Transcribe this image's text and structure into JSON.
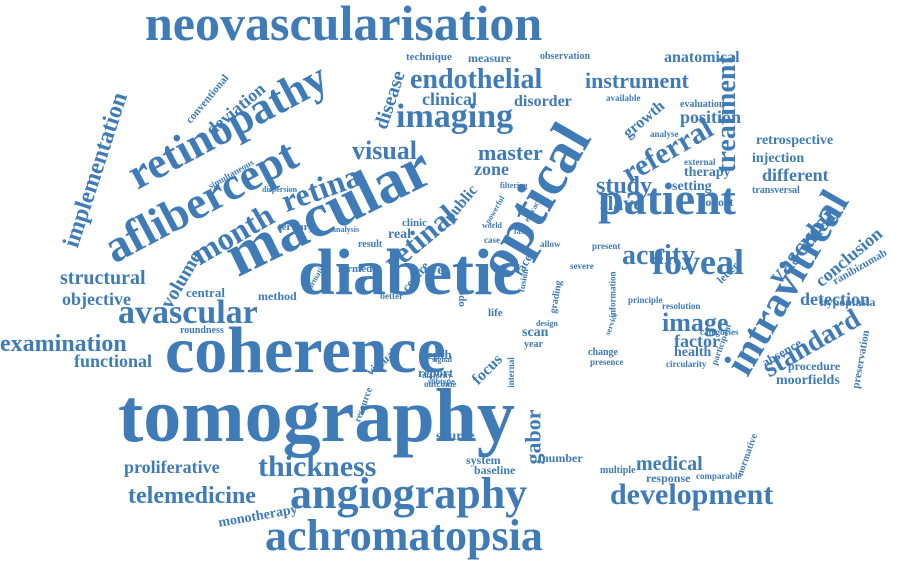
{
  "cloud": {
    "color": "#3f7bb6",
    "background": "#ffffff",
    "words": [
      "tomography",
      "coherence",
      "diabetic",
      "neovascularisation",
      "macular",
      "optical",
      "patient",
      "retinopathy",
      "aflibercept",
      "intravitreal",
      "angiography",
      "achromatopsia",
      "foveal",
      "endothelial",
      "imaging",
      "development",
      "telemedicine",
      "avascular",
      "month",
      "retina",
      "treatment",
      "retinal",
      "visual",
      "clinical",
      "instrument",
      "referral",
      "master",
      "study",
      "acuity",
      "image",
      "standard",
      "vascular",
      "implementation",
      "thickness",
      "proliferative",
      "examination",
      "structural",
      "objective",
      "functional",
      "volume",
      "disease",
      "detection",
      "moorfields",
      "conclusion",
      "medical",
      "gabor",
      "monotherapy",
      "deviation",
      "anatomical",
      "measure",
      "technique",
      "observation",
      "disorder",
      "position",
      "different",
      "setting",
      "cohort",
      "slave",
      "zone",
      "public",
      "growth",
      "evaluation",
      "retrospective",
      "injection",
      "therapy",
      "transversal",
      "ranibizumab",
      "hypoplasia",
      "preservation",
      "procedure",
      "absence",
      "factor",
      "health",
      "focus",
      "source",
      "system",
      "baseline",
      "number",
      "multiple",
      "response",
      "comparable",
      "normative",
      "central",
      "method",
      "tertiary",
      "formed",
      "result",
      "clinic",
      "real",
      "scan",
      "year",
      "internal",
      "depth",
      "report",
      "virtual",
      "resource",
      "outcome",
      "circularity",
      "categories",
      "change",
      "presence",
      "severe",
      "present",
      "fusion",
      "grading",
      "information",
      "principle",
      "resolution",
      "letter",
      "conventional",
      "simultaneous",
      "dispersion",
      "available",
      "analyse",
      "external",
      "roundness",
      "formation",
      "allow",
      "case",
      "face",
      "eye",
      "centre",
      "better",
      "subtype",
      "majority",
      "signal",
      "filtering",
      "powerful",
      "world",
      "analysis",
      "service",
      "participant",
      "design",
      "efficacy",
      "life",
      "open",
      "faster"
    ]
  }
}
